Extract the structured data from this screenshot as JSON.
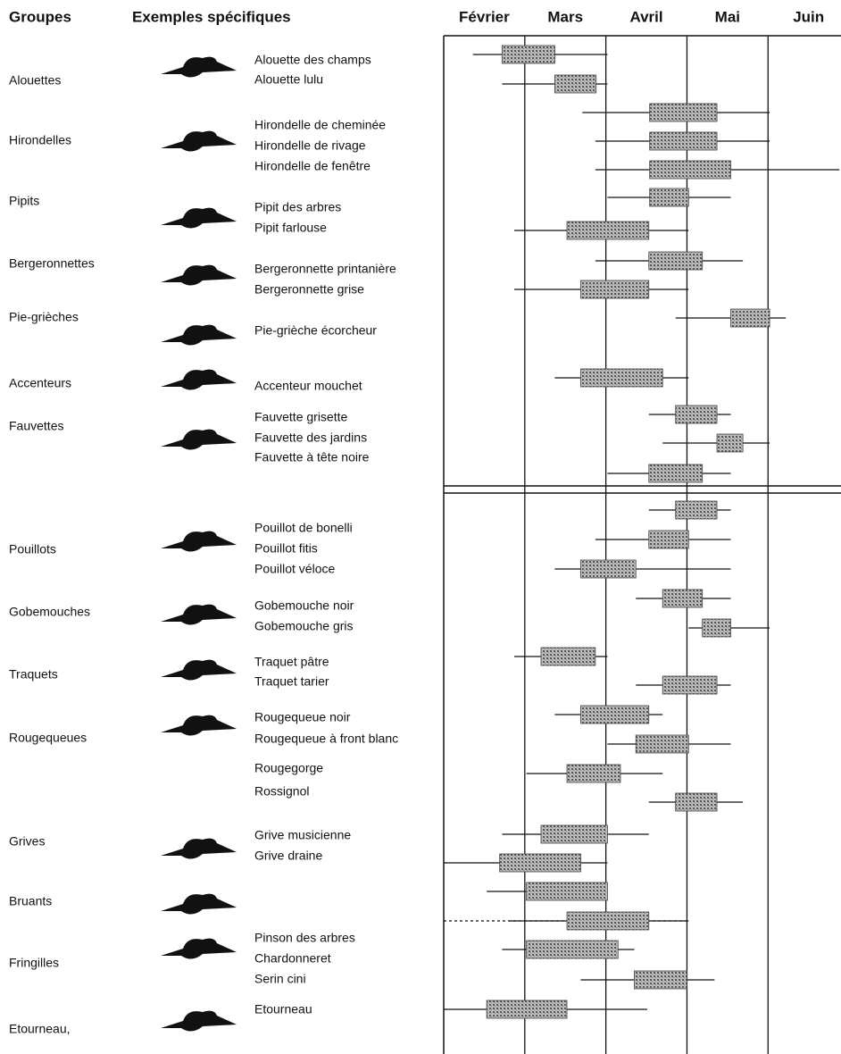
{
  "chart_data": {
    "type": "range",
    "group_header": "Groupes",
    "example_header": "Exemples spécifiques",
    "categories": [
      "Février",
      "Mars",
      "Avril",
      "Mai",
      "Juin"
    ],
    "xlim": [
      0,
      4.9
    ],
    "groups": [
      "Alouettes",
      "Hirondelles",
      "Pipits",
      "Bergeronnettes",
      "Pie-grièches",
      "Accenteurs",
      "Fauvettes",
      "Pouillots",
      "Gobemouches",
      "Traquets",
      "Rougequeues",
      "Grives",
      "Bruants",
      "Fringilles",
      "Etourneau,"
    ],
    "rows": [
      {
        "label": "Alouette des champs",
        "values": [
          0.36,
          0.72,
          1.37,
          2.02
        ]
      },
      {
        "label": "Alouette lulu",
        "values": [
          0.72,
          1.37,
          1.88,
          2.02
        ]
      },
      {
        "label": "Hirondelle de cheminée",
        "values": [
          1.71,
          2.54,
          3.37,
          4.02
        ]
      },
      {
        "label": "Hirondelle de rivage",
        "values": [
          1.87,
          2.54,
          3.37,
          4.02
        ]
      },
      {
        "label": "Hirondelle de fenêtre",
        "values": [
          1.87,
          2.54,
          3.54,
          4.88
        ]
      },
      {
        "label": "Pipit des arbres",
        "values": [
          2.02,
          2.54,
          3.02,
          3.54
        ]
      },
      {
        "label": "Pipit farlouse",
        "values": [
          0.87,
          1.52,
          2.53,
          3.02
        ]
      },
      {
        "label": "Bergeronnette printanière",
        "values": [
          1.87,
          2.53,
          3.19,
          3.69
        ]
      },
      {
        "label": "Bergeronnette grise",
        "values": [
          0.87,
          1.69,
          2.53,
          3.02
        ]
      },
      {
        "label": "Pie-grièche écorcheur",
        "values": [
          2.86,
          3.54,
          4.02,
          4.22
        ]
      },
      {
        "label": "Accenteur mouchet",
        "values": [
          1.37,
          1.69,
          2.7,
          3.02
        ]
      },
      {
        "label": "Fauvette grisette",
        "values": [
          2.53,
          2.86,
          3.37,
          3.54
        ]
      },
      {
        "label": "Fauvette des jardins",
        "values": [
          2.7,
          3.37,
          3.69,
          4.02
        ]
      },
      {
        "label": "Fauvette à tête noire",
        "values": [
          2.02,
          2.53,
          3.19,
          3.54
        ]
      },
      {
        "label": "Pouillot de bonelli",
        "values": [
          2.53,
          2.86,
          3.37,
          3.54
        ]
      },
      {
        "label": "Pouillot fitis",
        "values": [
          1.87,
          2.53,
          3.02,
          3.54
        ]
      },
      {
        "label": "Pouillot véloce",
        "values": [
          1.37,
          1.69,
          2.37,
          3.54
        ]
      },
      {
        "label": "Gobemouche noir",
        "values": [
          2.37,
          2.7,
          3.19,
          3.54
        ]
      },
      {
        "label": "Gobemouche gris",
        "values": [
          3.02,
          3.19,
          3.54,
          4.02
        ]
      },
      {
        "label": "Traquet pâtre",
        "values": [
          0.87,
          1.2,
          1.87,
          2.02
        ]
      },
      {
        "label": "Traquet tarier",
        "values": [
          2.37,
          2.7,
          3.37,
          3.54
        ]
      },
      {
        "label": "Rougequeue noir",
        "values": [
          1.37,
          1.69,
          2.53,
          2.7
        ]
      },
      {
        "label": "Rougequeue à front blanc",
        "values": [
          2.02,
          2.37,
          3.02,
          3.54
        ]
      },
      {
        "label": "Rougegorge",
        "values": [
          1.02,
          1.52,
          2.18,
          2.7
        ]
      },
      {
        "label": "Rossignol",
        "values": [
          2.53,
          2.86,
          3.37,
          3.69
        ]
      },
      {
        "label": "Grive musicienne",
        "values": [
          0.72,
          1.2,
          2.02,
          2.53
        ]
      },
      {
        "label": "Grive draine",
        "values": [
          0,
          0.69,
          1.69,
          2.02
        ]
      },
      {
        "label": null,
        "values": [
          0.53,
          1.02,
          2.02,
          2.02
        ]
      },
      {
        "label": "Pinson des arbres",
        "values": [
          0,
          1.52,
          2.53,
          3.02
        ],
        "dotted": true
      },
      {
        "label": "Chardonneret",
        "values": [
          0.72,
          1.02,
          2.15,
          2.35
        ]
      },
      {
        "label": "Serin cini",
        "values": [
          1.69,
          2.35,
          3.0,
          3.34
        ]
      },
      {
        "label": "Etourneau",
        "values": [
          0,
          0.53,
          1.52,
          2.51
        ]
      }
    ]
  }
}
